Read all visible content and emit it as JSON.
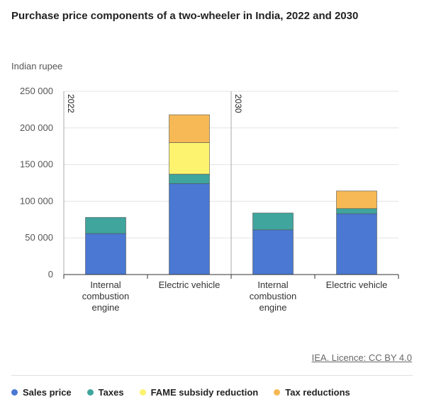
{
  "chart_data": {
    "type": "bar",
    "stacked": true,
    "title": "Purchase price components of a two-wheeler in India, 2022 and 2030",
    "ylabel": "Indian rupee",
    "ylim": [
      0,
      250000
    ],
    "yticks": [
      0,
      50000,
      100000,
      150000,
      200000,
      250000
    ],
    "ytick_labels": [
      "0",
      "50 000",
      "100 000",
      "150 000",
      "200 000",
      "250 000"
    ],
    "grid": true,
    "legend_position": "bottom",
    "panels": [
      {
        "label": "2022",
        "categories": [
          "Internal combustion engine",
          "Electric vehicle"
        ],
        "category_lines": [
          [
            "Internal",
            "combustion",
            "engine"
          ],
          [
            "Electric vehicle"
          ]
        ],
        "series": [
          {
            "name": "Sales price",
            "values": [
              56000,
              124000
            ]
          },
          {
            "name": "Taxes",
            "values": [
              22000,
              13000
            ]
          },
          {
            "name": "FAME subsidy reduction",
            "values": [
              0,
              43000
            ]
          },
          {
            "name": "Tax reductions",
            "values": [
              0,
              38000
            ]
          }
        ]
      },
      {
        "label": "2030",
        "categories": [
          "Internal combustion engine",
          "Electric vehicle"
        ],
        "category_lines": [
          [
            "Internal",
            "combustion",
            "engine"
          ],
          [
            "Electric vehicle"
          ]
        ],
        "series": [
          {
            "name": "Sales price",
            "values": [
              61000,
              83000
            ]
          },
          {
            "name": "Taxes",
            "values": [
              23000,
              7000
            ]
          },
          {
            "name": "FAME subsidy reduction",
            "values": [
              0,
              0
            ]
          },
          {
            "name": "Tax reductions",
            "values": [
              0,
              24000
            ]
          }
        ]
      }
    ],
    "colors": {
      "Sales price": "#4a78d2",
      "Taxes": "#3fa59d",
      "FAME subsidy reduction": "#fdf36f",
      "Tax reductions": "#f6b955"
    }
  },
  "source": "IEA. Licence: CC BY 4.0",
  "legend": [
    {
      "label": "Sales price",
      "color": "#4a78d2"
    },
    {
      "label": "Taxes",
      "color": "#3fa59d"
    },
    {
      "label": "FAME subsidy reduction",
      "color": "#fdf36f"
    },
    {
      "label": "Tax reductions",
      "color": "#f6b955"
    }
  ]
}
